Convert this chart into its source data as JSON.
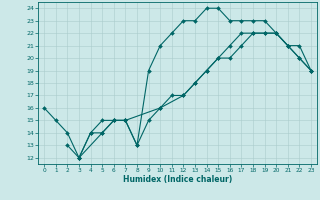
{
  "xlabel": "Humidex (Indice chaleur)",
  "bg_color": "#cce8e8",
  "line_color": "#006666",
  "grid_color": "#aacccc",
  "xlim": [
    -0.5,
    23.5
  ],
  "ylim": [
    11.5,
    24.5
  ],
  "xticks": [
    0,
    1,
    2,
    3,
    4,
    5,
    6,
    7,
    8,
    9,
    10,
    11,
    12,
    13,
    14,
    15,
    16,
    17,
    18,
    19,
    20,
    21,
    22,
    23
  ],
  "yticks": [
    12,
    13,
    14,
    15,
    16,
    17,
    18,
    19,
    20,
    21,
    22,
    23,
    24
  ],
  "line1_x": [
    0,
    1,
    2,
    3,
    4,
    5,
    6,
    7,
    8,
    9,
    10,
    11,
    12,
    13,
    14,
    15,
    16,
    17,
    18,
    19,
    20,
    21,
    22,
    23
  ],
  "line1_y": [
    16,
    15,
    14,
    12,
    14,
    15,
    15,
    15,
    13,
    19,
    21,
    22,
    23,
    23,
    24,
    24,
    23,
    23,
    23,
    23,
    22,
    21,
    20,
    19
  ],
  "line2_x": [
    2,
    3,
    4,
    5,
    6,
    7,
    8,
    9,
    10,
    11,
    12,
    13,
    14,
    15,
    16,
    17,
    18,
    19,
    20,
    21,
    22,
    23
  ],
  "line2_y": [
    13,
    12,
    14,
    14,
    15,
    15,
    13,
    15,
    16,
    17,
    17,
    18,
    19,
    20,
    21,
    22,
    22,
    22,
    22,
    21,
    20,
    19
  ],
  "line3_x": [
    3,
    5,
    6,
    7,
    10,
    12,
    13,
    14,
    15,
    16,
    17,
    18,
    19,
    20,
    21,
    22,
    23
  ],
  "line3_y": [
    12,
    14,
    15,
    15,
    16,
    17,
    18,
    19,
    20,
    20,
    21,
    22,
    22,
    22,
    21,
    21,
    19
  ]
}
